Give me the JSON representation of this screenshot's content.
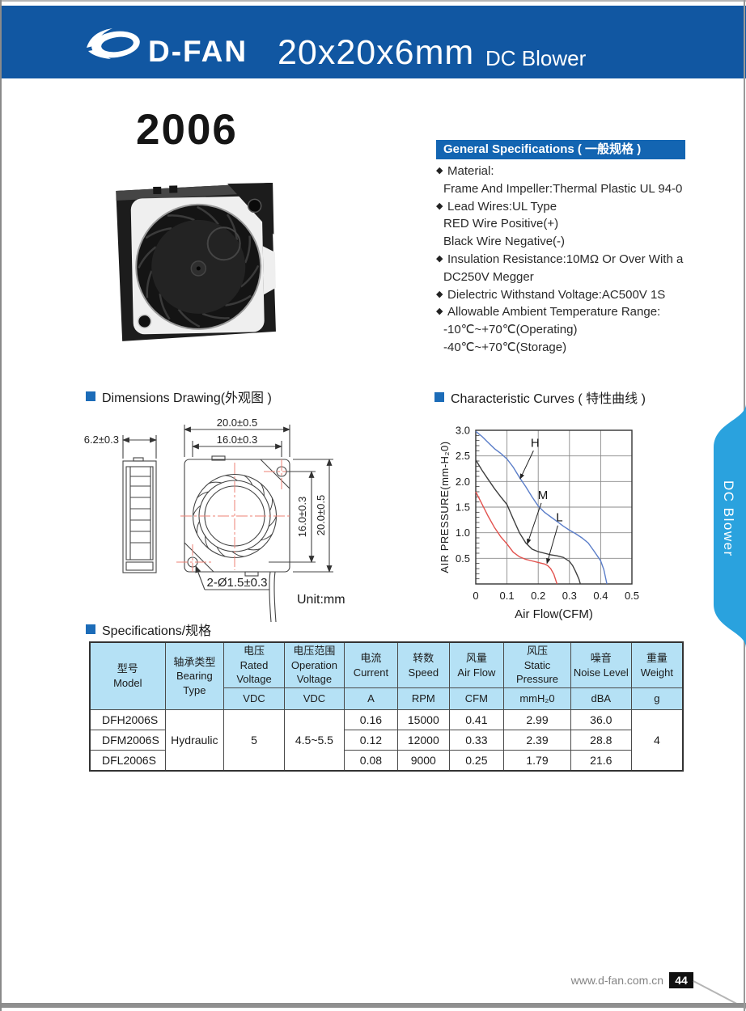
{
  "header": {
    "logo_text": "D-FAN",
    "size_text": "20x20x6mm",
    "type_text": "DC Blower",
    "bg_color": "#1157a2"
  },
  "side_tab": {
    "label": "DC Blower",
    "bg_color": "#2aa2de"
  },
  "product": {
    "model": "2006"
  },
  "general_specs": {
    "title": "General Specifications ( 一般规格 )",
    "bar_color": "#1365b2",
    "items": [
      {
        "bullet": true,
        "text": "Material:"
      },
      {
        "bullet": false,
        "text": "Frame And Impeller:Thermal Plastic UL 94-0"
      },
      {
        "bullet": true,
        "text": "Lead Wires:UL Type"
      },
      {
        "bullet": false,
        "text": "RED Wire Positive(+)"
      },
      {
        "bullet": false,
        "text": "Black Wire Negative(-)"
      },
      {
        "bullet": true,
        "text": "Insulation Resistance:10MΩ Or Over With a"
      },
      {
        "bullet": false,
        "text": "DC250V Megger"
      },
      {
        "bullet": true,
        "text": "Dielectric Withstand Voltage:AC500V 1S"
      },
      {
        "bullet": true,
        "text": "Allowable Ambient Temperature Range:"
      },
      {
        "bullet": false,
        "text": "-10℃~+70℃(Operating)"
      },
      {
        "bullet": false,
        "text": "-40℃~+70℃(Storage)"
      }
    ]
  },
  "sections": {
    "dimensions_title": "Dimensions Drawing(外观图 )",
    "curves_title": "Characteristic Curves ( 特性曲线 )",
    "specs_title": "Specifications/规格"
  },
  "dimensions": {
    "side_width": "6.2±0.3",
    "outer_width": "20.0±0.5",
    "hole_pitch_top": "16.0±0.3",
    "hole_pitch_right": "16.0±0.3",
    "outer_height": "20.0±0.5",
    "holes_note": "2-Ø1.5±0.3",
    "unit": "Unit:mm"
  },
  "chart_data": {
    "type": "line",
    "title": "Characteristic Curves ( 特性曲线 )",
    "xlabel": "Air Flow(CFM)",
    "ylabel": "AIR PRESSURE(mm-H₂0)",
    "xlim": [
      0,
      0.5
    ],
    "ylim": [
      0,
      3.0
    ],
    "xticks": [
      0,
      0.1,
      0.2,
      0.3,
      0.4,
      0.5
    ],
    "yticks": [
      0.5,
      1.0,
      1.5,
      2.0,
      2.5,
      3.0
    ],
    "y_minor_step": 0.1,
    "grid": true,
    "legend_position": "inline-annotations",
    "series": [
      {
        "name": "H",
        "color": "#5b7ec9",
        "points": [
          [
            0,
            2.98
          ],
          [
            0.02,
            2.88
          ],
          [
            0.04,
            2.76
          ],
          [
            0.06,
            2.64
          ],
          [
            0.08,
            2.55
          ],
          [
            0.1,
            2.44
          ],
          [
            0.12,
            2.28
          ],
          [
            0.14,
            2.08
          ],
          [
            0.16,
            1.9
          ],
          [
            0.18,
            1.7
          ],
          [
            0.2,
            1.52
          ],
          [
            0.22,
            1.4
          ],
          [
            0.24,
            1.31
          ],
          [
            0.26,
            1.22
          ],
          [
            0.28,
            1.13
          ],
          [
            0.3,
            1.05
          ],
          [
            0.32,
            0.98
          ],
          [
            0.34,
            0.9
          ],
          [
            0.36,
            0.8
          ],
          [
            0.38,
            0.63
          ],
          [
            0.4,
            0.45
          ],
          [
            0.41,
            0.28
          ],
          [
            0.42,
            0.0
          ]
        ]
      },
      {
        "name": "M",
        "color": "#3f3f3f",
        "points": [
          [
            0,
            2.42
          ],
          [
            0.02,
            2.22
          ],
          [
            0.04,
            2.04
          ],
          [
            0.06,
            1.86
          ],
          [
            0.08,
            1.7
          ],
          [
            0.1,
            1.55
          ],
          [
            0.12,
            1.27
          ],
          [
            0.14,
            1.0
          ],
          [
            0.16,
            0.8
          ],
          [
            0.18,
            0.68
          ],
          [
            0.2,
            0.63
          ],
          [
            0.22,
            0.6
          ],
          [
            0.24,
            0.57
          ],
          [
            0.26,
            0.55
          ],
          [
            0.28,
            0.52
          ],
          [
            0.3,
            0.44
          ],
          [
            0.31,
            0.36
          ],
          [
            0.32,
            0.24
          ],
          [
            0.33,
            0.1
          ],
          [
            0.335,
            0.0
          ]
        ]
      },
      {
        "name": "L",
        "color": "#e2524e",
        "points": [
          [
            0,
            1.8
          ],
          [
            0.02,
            1.56
          ],
          [
            0.04,
            1.32
          ],
          [
            0.06,
            1.1
          ],
          [
            0.08,
            0.92
          ],
          [
            0.1,
            0.78
          ],
          [
            0.12,
            0.62
          ],
          [
            0.14,
            0.53
          ],
          [
            0.16,
            0.48
          ],
          [
            0.18,
            0.45
          ],
          [
            0.2,
            0.42
          ],
          [
            0.22,
            0.39
          ],
          [
            0.23,
            0.36
          ],
          [
            0.24,
            0.3
          ],
          [
            0.25,
            0.19
          ],
          [
            0.26,
            0.0
          ]
        ]
      }
    ],
    "annotations": [
      {
        "label": "H",
        "x": 0.19,
        "y": 2.68,
        "ax": 0.142,
        "ay": 2.05
      },
      {
        "label": "M",
        "x": 0.215,
        "y": 1.66,
        "ax": 0.165,
        "ay": 0.78
      },
      {
        "label": "L",
        "x": 0.268,
        "y": 1.22,
        "ax": 0.228,
        "ay": 0.4
      }
    ]
  },
  "spec_table": {
    "header": {
      "model": "型号\nModel",
      "bearing": "轴承类型\nBearing\nType",
      "rated_voltage": "电压\nRated\nVoltage",
      "operation_voltage": "电压范围\nOperation\nVoltage",
      "current": "电流\nCurrent",
      "speed": "转数\nSpeed",
      "airflow": "风量\nAir Flow",
      "pressure": "风压\nStatic\nPressure",
      "noise": "噪音\nNoise Level",
      "weight": "重量\nWeight"
    },
    "units": {
      "rated_voltage": "VDC",
      "operation_voltage": "VDC",
      "current": "A",
      "speed": "RPM",
      "airflow": "CFM",
      "pressure": "mmH₂0",
      "noise": "dBA",
      "weight": "g"
    },
    "shared": {
      "bearing": "Hydraulic",
      "rated_voltage": "5",
      "operation_voltage": "4.5~5.5",
      "weight": "4"
    },
    "rows": [
      {
        "model": "DFH2006S",
        "current": "0.16",
        "speed": "15000",
        "airflow": "0.41",
        "pressure": "2.99",
        "noise": "36.0"
      },
      {
        "model": "DFM2006S",
        "current": "0.12",
        "speed": "12000",
        "airflow": "0.33",
        "pressure": "2.39",
        "noise": "28.8"
      },
      {
        "model": "DFL2006S",
        "current": "0.08",
        "speed": "9000",
        "airflow": "0.25",
        "pressure": "1.79",
        "noise": "21.6"
      }
    ]
  },
  "footer": {
    "website": "www.d-fan.com.cn",
    "page": "44"
  }
}
